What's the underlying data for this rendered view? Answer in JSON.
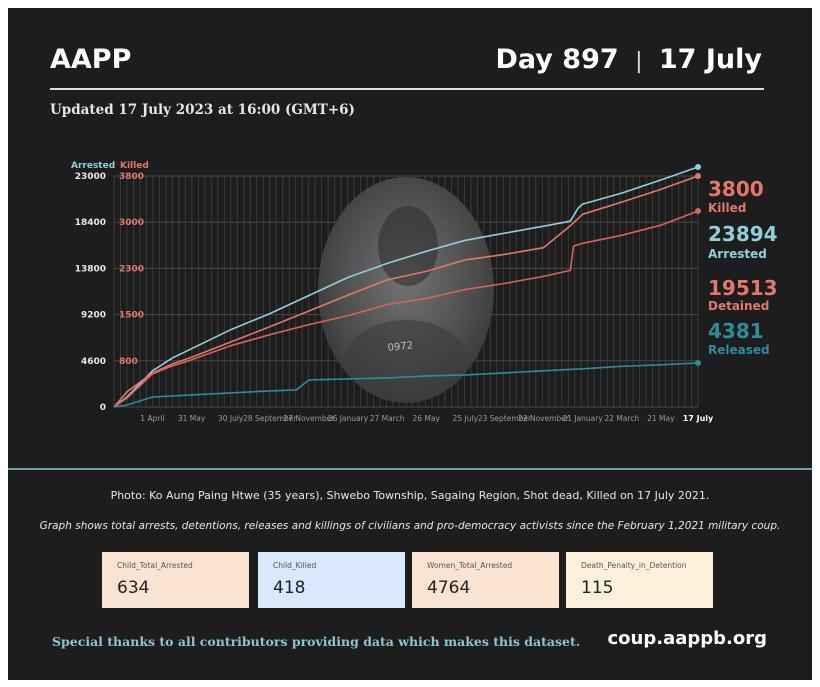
{
  "header": {
    "brand": "AAPP",
    "day_label": "Day 897",
    "date_label": "17 July",
    "updated": "Updated 17 July 2023 at 16:00 (GMT+6)"
  },
  "colors": {
    "arrested": "#8ed0dc",
    "killed": "#e3776e",
    "detained": "#d9625a",
    "released": "#2c8d9d",
    "background": "#1d1d1d"
  },
  "chart_data": {
    "type": "line",
    "title": "",
    "axis_labels": {
      "left": "Arrested",
      "right": "Killed"
    },
    "y_left_ticks": [
      0,
      4600,
      9200,
      13800,
      18400,
      23000
    ],
    "y_right_ticks": [
      800,
      1500,
      2300,
      3000,
      3800
    ],
    "ylim_left": [
      0,
      23000
    ],
    "grid": true,
    "x_ticks": [
      "1 April",
      "31 May",
      "30 July",
      "28 September",
      "27 November",
      "26 January",
      "27 March",
      "26 May",
      "25 July",
      "23 September",
      "22 November",
      "21 January",
      "22 March",
      "21 May",
      "17 July"
    ],
    "x_ticks_days": [
      59,
      119,
      179,
      239,
      299,
      359,
      419,
      479,
      539,
      599,
      659,
      719,
      779,
      839,
      896
    ],
    "xlim_days": [
      0,
      896
    ],
    "series": [
      {
        "name": "Arrested",
        "x": [
          0,
          20,
          59,
          90,
          119,
          179,
          239,
          299,
          359,
          419,
          479,
          539,
          599,
          659,
          700,
          712,
          719,
          779,
          839,
          896
        ],
        "y": [
          0,
          1000,
          3600,
          4900,
          5800,
          7700,
          9300,
          11100,
          12900,
          14300,
          15500,
          16600,
          17300,
          18000,
          18500,
          19800,
          20200,
          21300,
          22600,
          23894
        ]
      },
      {
        "name": "Killed",
        "x": [
          0,
          20,
          59,
          90,
          119,
          179,
          239,
          299,
          359,
          419,
          479,
          539,
          599,
          659,
          700,
          719,
          779,
          839,
          896
        ],
        "y": [
          0,
          250,
          560,
          710,
          820,
          1070,
          1320,
          1580,
          1840,
          2090,
          2230,
          2420,
          2510,
          2620,
          2980,
          3170,
          3370,
          3580,
          3800
        ]
      },
      {
        "name": "Detained",
        "y_axis": "left",
        "x": [
          0,
          20,
          59,
          90,
          119,
          179,
          239,
          299,
          359,
          419,
          479,
          539,
          599,
          659,
          700,
          705,
          719,
          779,
          839,
          896
        ],
        "y": [
          0,
          900,
          3300,
          4100,
          4700,
          6100,
          7200,
          8200,
          9100,
          10200,
          10800,
          11700,
          12300,
          13000,
          13600,
          16000,
          16300,
          17100,
          18100,
          19513
        ]
      },
      {
        "name": "Released",
        "y_axis": "left",
        "x": [
          0,
          20,
          59,
          119,
          179,
          239,
          280,
          299,
          359,
          419,
          479,
          539,
          599,
          659,
          719,
          779,
          839,
          896
        ],
        "y": [
          0,
          200,
          1000,
          1200,
          1400,
          1600,
          1700,
          2700,
          2800,
          2900,
          3100,
          3200,
          3400,
          3600,
          3800,
          4050,
          4200,
          4381
        ]
      }
    ],
    "end_labels": [
      {
        "value": "3800",
        "label": "Killed"
      },
      {
        "value": "23894",
        "label": "Arrested"
      },
      {
        "value": "19513",
        "label": "Detained"
      },
      {
        "value": "4381",
        "label": "Released"
      }
    ]
  },
  "photo": {
    "text": "0972"
  },
  "caption": "Photo: Ko Aung Paing Htwe (35 years), Shwebo Township, Sagaing Region, Shot dead, Killed on 17 July 2021.",
  "note": "Graph shows total arrests, detentions, releases and killings of civilians and pro-democracy activists since the February 1,2021 military coup.",
  "stats": [
    {
      "label": "Child_Total_Arrested",
      "value": "634",
      "color": "#fbe3d2"
    },
    {
      "label": "Child_Killed",
      "value": "418",
      "color": "#d9e8fb"
    },
    {
      "label": "Women_Total_Arrested",
      "value": "4764",
      "color": "#fbe3d2"
    },
    {
      "label": "Death_Penalty_in_Detention",
      "value": "115",
      "color": "#fdf1dc"
    }
  ],
  "footer": {
    "thanks": "Special thanks to all contributors providing data which makes this dataset.",
    "site": "coup.aappb.org"
  }
}
